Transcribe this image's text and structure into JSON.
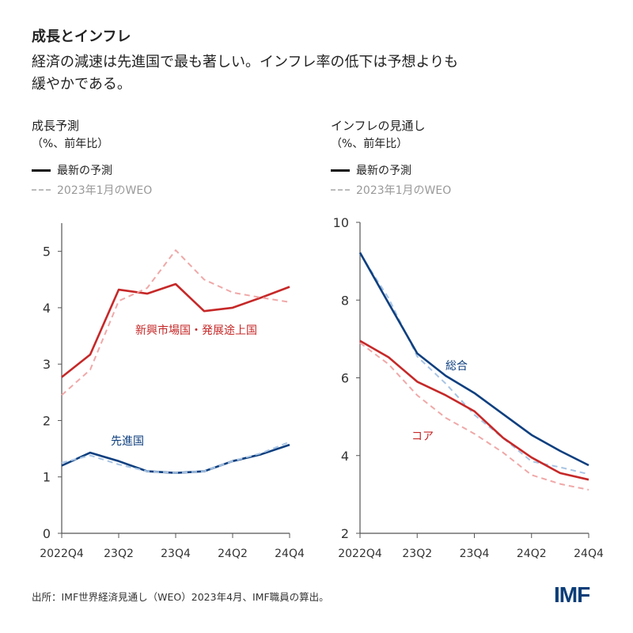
{
  "title": "成長とインフレ",
  "subtitle": [
    "経済の減速は先進国で最も著しい。インフレ率の低下は予想よりも",
    "緩やかである。"
  ],
  "footer": "出所：IMF世界経済見通し（WEO）2023年4月、IMF職員の算出。",
  "logo": "IMF",
  "colors": {
    "red": "#c62828",
    "red_light": "#f0a8a8",
    "blue": "#0d3f7f",
    "blue_light": "#a8c4e4",
    "axis": "#555555"
  },
  "chart_data": [
    {
      "type": "line",
      "title": "成長予測",
      "unit": "（%、前年比）",
      "legend": [
        "最新の予測",
        "2023年1月のWEO"
      ],
      "categories": [
        "2022Q4",
        "23Q1",
        "23Q2",
        "23Q3",
        "23Q4",
        "24Q1",
        "24Q2",
        "24Q3",
        "24Q4"
      ],
      "tick_labels": [
        "2022Q4",
        "23Q2",
        "23Q4",
        "24Q2",
        "24Q4"
      ],
      "yticks": [
        0,
        1,
        2,
        3,
        4,
        5
      ],
      "ylim": [
        0,
        5.5
      ],
      "series": [
        {
          "name": "新興市場国・発展途上国",
          "style": "latest",
          "color": "#c62828",
          "values": [
            2.77,
            3.17,
            4.32,
            4.25,
            4.42,
            3.94,
            4.0,
            4.18,
            4.37
          ]
        },
        {
          "name": "新興市場国・発展途上国",
          "style": "weo",
          "color": "#f0a8a8",
          "values": [
            2.45,
            2.9,
            4.12,
            4.35,
            5.02,
            4.5,
            4.27,
            4.18,
            4.1
          ]
        },
        {
          "name": "先進国",
          "style": "latest",
          "color": "#0d3f7f",
          "values": [
            1.2,
            1.43,
            1.28,
            1.1,
            1.07,
            1.1,
            1.28,
            1.4,
            1.57
          ]
        },
        {
          "name": "先進国",
          "style": "weo",
          "color": "#a8c4e4",
          "values": [
            1.25,
            1.38,
            1.22,
            1.1,
            1.07,
            1.1,
            1.28,
            1.42,
            1.62
          ]
        }
      ],
      "labels": [
        {
          "text": "新興市場国・発展途上国",
          "color": "#c62828"
        },
        {
          "text": "先進国",
          "color": "#0d3f7f"
        }
      ]
    },
    {
      "type": "line",
      "title": "インフレの見通し",
      "unit": "（%、前年比）",
      "legend": [
        "最新の予測",
        "2023年1月のWEO"
      ],
      "categories": [
        "2022Q4",
        "23Q1",
        "23Q2",
        "23Q3",
        "23Q4",
        "24Q1",
        "24Q2",
        "24Q3",
        "24Q4"
      ],
      "tick_labels": [
        "2022Q4",
        "23Q2",
        "23Q4",
        "24Q2",
        "24Q4"
      ],
      "yticks": [
        2,
        4,
        6,
        8,
        10
      ],
      "ylim": [
        2,
        10
      ],
      "series": [
        {
          "name": "総合",
          "style": "weo",
          "color": "#a8c4e4",
          "values": [
            9.2,
            8.05,
            6.55,
            5.85,
            5.05,
            4.45,
            3.85,
            3.7,
            3.52
          ]
        },
        {
          "name": "コア",
          "style": "weo",
          "color": "#f0a8a8",
          "values": [
            6.9,
            6.35,
            5.55,
            4.97,
            4.56,
            4.08,
            3.5,
            3.27,
            3.12
          ]
        },
        {
          "name": "総合",
          "style": "latest",
          "color": "#0d3f7f",
          "values": [
            9.22,
            7.92,
            6.63,
            6.05,
            5.61,
            5.07,
            4.53,
            4.12,
            3.75
          ]
        },
        {
          "name": "コア",
          "style": "latest",
          "color": "#c62828",
          "values": [
            6.95,
            6.53,
            5.9,
            5.55,
            5.14,
            4.46,
            3.95,
            3.55,
            3.38
          ]
        }
      ],
      "labels": [
        {
          "text": "総合",
          "color": "#0d3f7f"
        },
        {
          "text": "コア",
          "color": "#c62828"
        }
      ]
    }
  ]
}
